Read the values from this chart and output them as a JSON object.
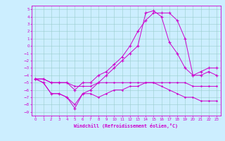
{
  "xlabel": "Windchill (Refroidissement éolien,°C)",
  "bg_color": "#cceeff",
  "line_color": "#cc00cc",
  "grid_color": "#99cccc",
  "xlim": [
    -0.5,
    23.5
  ],
  "ylim": [
    -9.5,
    5.5
  ],
  "xticks": [
    0,
    1,
    2,
    3,
    4,
    5,
    6,
    7,
    8,
    9,
    10,
    11,
    12,
    13,
    14,
    15,
    16,
    17,
    18,
    19,
    20,
    21,
    22,
    23
  ],
  "yticks": [
    5,
    4,
    3,
    2,
    1,
    0,
    -1,
    -2,
    -3,
    -4,
    -5,
    -6,
    -7,
    -8,
    -9
  ],
  "series1_x": [
    0,
    1,
    2,
    3,
    4,
    5,
    6,
    7,
    8,
    9,
    10,
    11,
    12,
    13,
    14,
    15,
    16,
    17,
    18,
    19,
    20,
    21,
    22,
    23
  ],
  "series1_y": [
    -4.5,
    -4.5,
    -5.0,
    -5.0,
    -5.0,
    -5.5,
    -5.5,
    -5.5,
    -5.0,
    -5.0,
    -5.0,
    -5.0,
    -5.0,
    -5.0,
    -5.0,
    -5.0,
    -5.0,
    -5.0,
    -5.0,
    -5.0,
    -5.5,
    -5.5,
    -5.5,
    -5.5
  ],
  "series2_x": [
    0,
    1,
    2,
    3,
    4,
    5,
    6,
    7,
    8,
    9,
    10,
    11,
    12,
    13,
    14,
    15,
    16,
    17,
    18,
    19,
    20,
    21,
    22,
    23
  ],
  "series2_y": [
    -4.5,
    -5.0,
    -6.5,
    -6.5,
    -7.0,
    -8.0,
    -6.5,
    -6.5,
    -7.0,
    -6.5,
    -6.0,
    -6.0,
    -5.5,
    -5.5,
    -5.0,
    -5.0,
    -5.5,
    -6.0,
    -6.5,
    -7.0,
    -7.0,
    -7.5,
    -7.5,
    -7.5
  ],
  "series3_x": [
    0,
    1,
    2,
    3,
    4,
    5,
    6,
    7,
    8,
    9,
    10,
    11,
    12,
    13,
    14,
    15,
    16,
    17,
    18,
    19,
    20,
    21,
    22,
    23
  ],
  "series3_y": [
    -4.5,
    -5.0,
    -6.5,
    -6.5,
    -7.0,
    -8.5,
    -6.5,
    -6.0,
    -5.0,
    -4.0,
    -3.0,
    -2.0,
    -1.0,
    0.0,
    4.5,
    4.8,
    4.0,
    0.5,
    -1.0,
    -3.0,
    -4.0,
    -4.0,
    -3.5,
    -4.0
  ],
  "series4_x": [
    0,
    1,
    2,
    3,
    4,
    5,
    6,
    7,
    8,
    9,
    10,
    11,
    12,
    13,
    14,
    15,
    16,
    17,
    18,
    19,
    20,
    21,
    22,
    23
  ],
  "series4_y": [
    -4.5,
    -4.5,
    -5.0,
    -5.0,
    -5.0,
    -6.0,
    -5.0,
    -5.0,
    -4.0,
    -3.5,
    -2.5,
    -1.5,
    0.0,
    2.0,
    3.5,
    4.5,
    4.5,
    4.5,
    3.5,
    1.0,
    -4.0,
    -3.5,
    -3.0,
    -3.0
  ]
}
